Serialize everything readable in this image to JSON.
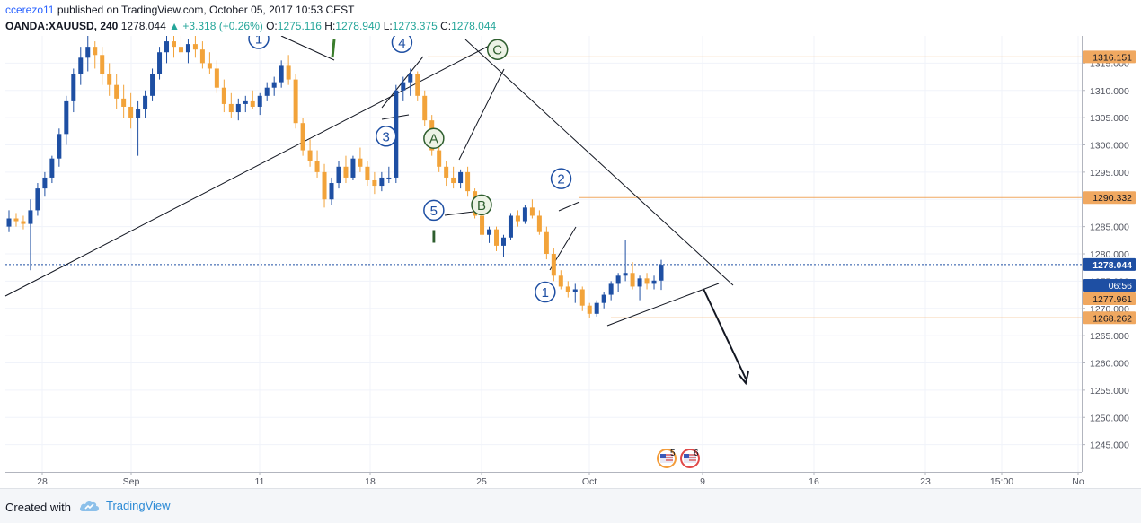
{
  "header": {
    "author": "ccerezo11",
    "published_text": "published on TradingView.com, October 05, 2017 10:53 CEST",
    "symbol": "OANDA:XAUUSD, 240",
    "last": "1278.044",
    "change_arrow": "▲",
    "change": "+3.318 (+0.26%)",
    "open_label": "O:",
    "open": "1275.116",
    "high_label": "H:",
    "high": "1278.940",
    "low_label": "L:",
    "low": "1273.375",
    "close_label": "C:",
    "close": "1278.044"
  },
  "footer": {
    "created_with": "Created with",
    "brand": "TradingView"
  },
  "colors": {
    "up_candle": "#1e4fa3",
    "down_candle": "#f2a33a",
    "level_line": "#f0a860",
    "price_tag": "#f0a860",
    "last_price_tag": "#1e4fa3",
    "wave_blue": "#1e4fa3",
    "wave_green": "#2e5e2e"
  },
  "chart_data": {
    "type": "candlestick",
    "y_range": [
      1240,
      1320
    ],
    "x_tick_labels": [
      "28",
      "Sep",
      "11",
      "18",
      "25",
      "Oct",
      "9",
      "16",
      "23",
      "15:00",
      "No"
    ],
    "y_tick_labels": [
      "1315.000",
      "1310.000",
      "1305.000",
      "1300.000",
      "1295.000",
      "1290.000",
      "1285.000",
      "1280.000",
      "1275.000",
      "1270.000",
      "1265.000",
      "1260.000",
      "1255.000",
      "1250.000",
      "1245.000"
    ],
    "price_tags": [
      {
        "label": "1316.151",
        "value": 1316.151,
        "kind": "level"
      },
      {
        "label": "1290.332",
        "value": 1290.332,
        "kind": "level"
      },
      {
        "label": "1278.044",
        "value": 1278.044,
        "kind": "last"
      },
      {
        "label": "06:56",
        "value": 1275.6,
        "kind": "countdown"
      },
      {
        "label": "1277.961",
        "value": 1273.2,
        "kind": "level"
      },
      {
        "label": "1268.262",
        "value": 1268.262,
        "kind": "level"
      }
    ],
    "wave_labels": [
      {
        "text": "1",
        "style": "blue",
        "x": "Sep 11",
        "y": 1319.5
      },
      {
        "text": "4",
        "style": "blue",
        "x": "Sep 20",
        "y": 1318.8
      },
      {
        "text": "C",
        "style": "green",
        "x": "Sep 26",
        "y": 1317.5
      },
      {
        "text": "3",
        "style": "blue",
        "x": "Sep 19",
        "y": 1301.6
      },
      {
        "text": "A",
        "style": "green",
        "x": "Sep 22",
        "y": 1301.2
      },
      {
        "text": "B",
        "style": "green",
        "x": "Sep 25",
        "y": 1289.0
      },
      {
        "text": "5",
        "style": "blue",
        "x": "Sep 22",
        "y": 1288.0
      },
      {
        "text": "2",
        "style": "blue",
        "x": "Sep 30",
        "y": 1293.8
      },
      {
        "text": "1",
        "style": "blue",
        "x": "Sep 29",
        "y": 1273.0
      },
      {
        "text": "I",
        "style": "roman",
        "x": "Sep 22",
        "y": 1283.4
      }
    ],
    "event_markers": [
      {
        "label": "5"
      },
      {
        "label": "6"
      }
    ],
    "candles": [
      [
        1285.0,
        1288.0,
        1284.0,
        1286.5
      ],
      [
        1286.5,
        1287.5,
        1285.0,
        1286.0
      ],
      [
        1286.0,
        1287.0,
        1284.5,
        1285.5
      ],
      [
        1285.5,
        1290.0,
        1277.0,
        1288.0
      ],
      [
        1288.0,
        1293.0,
        1287.0,
        1292.0
      ],
      [
        1292.0,
        1295.0,
        1290.5,
        1294.0
      ],
      [
        1294.0,
        1298.0,
        1293.0,
        1297.5
      ],
      [
        1297.5,
        1303.0,
        1296.0,
        1302.0
      ],
      [
        1302.0,
        1309.0,
        1300.0,
        1308.0
      ],
      [
        1308.0,
        1314.0,
        1306.0,
        1313.0
      ],
      [
        1313.0,
        1318.0,
        1311.0,
        1316.0
      ],
      [
        1316.0,
        1320.0,
        1313.5,
        1318.0
      ],
      [
        1318.0,
        1319.0,
        1314.0,
        1316.5
      ],
      [
        1316.5,
        1318.0,
        1311.0,
        1313.0
      ],
      [
        1313.0,
        1315.0,
        1309.0,
        1311.0
      ],
      [
        1311.0,
        1313.0,
        1306.5,
        1308.5
      ],
      [
        1308.5,
        1311.0,
        1305.0,
        1307.0
      ],
      [
        1307.0,
        1309.5,
        1303.0,
        1305.0
      ],
      [
        1305.0,
        1308.0,
        1298.0,
        1306.5
      ],
      [
        1306.5,
        1310.0,
        1305.0,
        1309.0
      ],
      [
        1309.0,
        1314.0,
        1308.0,
        1313.0
      ],
      [
        1313.0,
        1318.0,
        1312.0,
        1317.0
      ],
      [
        1317.0,
        1320.0,
        1315.0,
        1319.0
      ],
      [
        1319.0,
        1320.5,
        1316.0,
        1318.0
      ],
      [
        1318.0,
        1320.0,
        1315.5,
        1317.0
      ],
      [
        1317.0,
        1319.5,
        1315.0,
        1318.5
      ],
      [
        1318.5,
        1320.0,
        1316.0,
        1317.5
      ],
      [
        1317.5,
        1319.0,
        1314.0,
        1315.0
      ],
      [
        1315.0,
        1317.0,
        1313.0,
        1314.0
      ],
      [
        1314.0,
        1315.5,
        1309.5,
        1310.5
      ],
      [
        1310.5,
        1312.0,
        1306.0,
        1307.5
      ],
      [
        1307.5,
        1309.5,
        1305.0,
        1306.0
      ],
      [
        1306.0,
        1308.5,
        1304.5,
        1307.5
      ],
      [
        1307.5,
        1309.0,
        1306.0,
        1308.0
      ],
      [
        1308.0,
        1310.0,
        1306.5,
        1307.0
      ],
      [
        1307.0,
        1309.5,
        1305.5,
        1309.0
      ],
      [
        1309.0,
        1311.5,
        1308.0,
        1310.5
      ],
      [
        1310.5,
        1312.5,
        1309.0,
        1311.5
      ],
      [
        1311.5,
        1315.5,
        1310.5,
        1314.5
      ],
      [
        1314.5,
        1316.5,
        1311.0,
        1312.0
      ],
      [
        1312.0,
        1313.0,
        1303.0,
        1304.0
      ],
      [
        1304.0,
        1305.0,
        1298.0,
        1299.0
      ],
      [
        1299.0,
        1301.0,
        1296.0,
        1297.0
      ],
      [
        1297.0,
        1299.0,
        1294.0,
        1295.0
      ],
      [
        1295.0,
        1296.5,
        1288.5,
        1290.0
      ],
      [
        1290.0,
        1294.0,
        1289.0,
        1293.0
      ],
      [
        1293.0,
        1297.0,
        1292.0,
        1296.0
      ],
      [
        1296.0,
        1298.0,
        1293.0,
        1294.0
      ],
      [
        1294.0,
        1298.0,
        1293.5,
        1297.5
      ],
      [
        1297.5,
        1299.5,
        1295.0,
        1296.0
      ],
      [
        1296.0,
        1297.0,
        1292.5,
        1293.5
      ],
      [
        1293.5,
        1295.0,
        1291.0,
        1292.5
      ],
      [
        1292.5,
        1295.0,
        1291.5,
        1294.0
      ],
      [
        1294.0,
        1296.0,
        1293.0,
        1294.0
      ],
      [
        1294.0,
        1311.0,
        1293.0,
        1310.0
      ],
      [
        1310.0,
        1312.5,
        1308.0,
        1311.5
      ],
      [
        1311.5,
        1314.0,
        1309.0,
        1313.0
      ],
      [
        1313.0,
        1313.5,
        1308.0,
        1309.0
      ],
      [
        1309.0,
        1310.0,
        1303.5,
        1304.5
      ],
      [
        1304.5,
        1305.5,
        1298.0,
        1299.0
      ],
      [
        1299.0,
        1300.5,
        1295.0,
        1296.0
      ],
      [
        1296.0,
        1297.0,
        1292.5,
        1294.0
      ],
      [
        1294.0,
        1296.0,
        1292.0,
        1293.0
      ],
      [
        1293.0,
        1295.5,
        1292.0,
        1295.0
      ],
      [
        1295.0,
        1296.0,
        1290.5,
        1291.5
      ],
      [
        1291.5,
        1292.0,
        1286.5,
        1287.0
      ],
      [
        1287.0,
        1288.0,
        1282.5,
        1283.5
      ],
      [
        1283.5,
        1285.0,
        1282.0,
        1284.5
      ],
      [
        1284.5,
        1285.0,
        1280.5,
        1281.5
      ],
      [
        1281.5,
        1283.5,
        1279.5,
        1283.0
      ],
      [
        1283.0,
        1287.5,
        1282.5,
        1287.0
      ],
      [
        1287.0,
        1288.0,
        1285.0,
        1286.0
      ],
      [
        1286.0,
        1289.0,
        1285.5,
        1288.5
      ],
      [
        1288.5,
        1290.0,
        1286.5,
        1287.0
      ],
      [
        1287.0,
        1288.0,
        1283.5,
        1284.0
      ],
      [
        1284.0,
        1285.0,
        1279.0,
        1280.0
      ],
      [
        1280.0,
        1281.0,
        1275.0,
        1276.0
      ],
      [
        1276.0,
        1277.0,
        1273.5,
        1274.0
      ],
      [
        1274.0,
        1275.0,
        1272.0,
        1273.0
      ],
      [
        1273.0,
        1274.5,
        1271.0,
        1273.5
      ],
      [
        1273.5,
        1274.0,
        1269.5,
        1270.5
      ],
      [
        1270.5,
        1271.0,
        1268.3,
        1269.0
      ],
      [
        1269.0,
        1271.5,
        1268.5,
        1271.0
      ],
      [
        1271.0,
        1273.0,
        1270.0,
        1272.5
      ],
      [
        1272.5,
        1275.0,
        1271.5,
        1274.5
      ],
      [
        1274.5,
        1276.5,
        1273.0,
        1276.0
      ],
      [
        1276.0,
        1282.5,
        1275.0,
        1276.5
      ],
      [
        1276.5,
        1278.5,
        1273.5,
        1274.0
      ],
      [
        1274.0,
        1276.0,
        1271.5,
        1275.5
      ],
      [
        1275.5,
        1276.5,
        1273.5,
        1274.5
      ],
      [
        1274.5,
        1276.0,
        1273.5,
        1275.1
      ],
      [
        1275.1,
        1278.9,
        1273.4,
        1278.0
      ]
    ]
  }
}
